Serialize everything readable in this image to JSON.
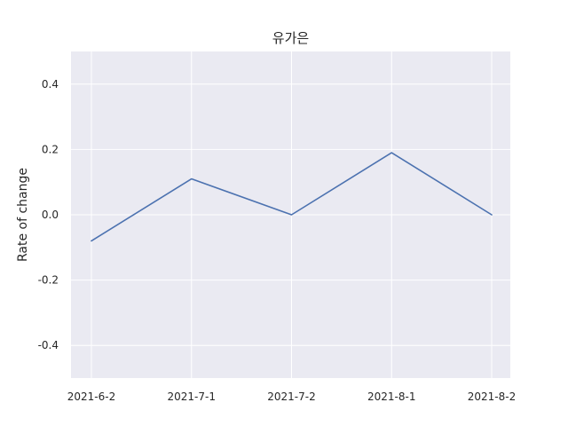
{
  "chart_data": {
    "type": "line",
    "title": "유가은",
    "xlabel": "",
    "ylabel": "Rate of change",
    "categories": [
      "2021-6-2",
      "2021-7-1",
      "2021-7-2",
      "2021-8-1",
      "2021-8-2"
    ],
    "series": [
      {
        "values": [
          -0.08,
          0.11,
          0.0,
          0.19,
          0.0
        ]
      }
    ],
    "ylim": [
      -0.5,
      0.5
    ],
    "yticks": [
      0.4,
      0.2,
      0.0,
      -0.2,
      -0.4
    ],
    "ytick_labels": [
      "0.4",
      "0.2",
      "0.0",
      "-0.2",
      "-0.4"
    ],
    "grid": true,
    "colors": {
      "background": "#eaeaf2",
      "grid": "#ffffff",
      "line": "#4c72b0"
    }
  }
}
